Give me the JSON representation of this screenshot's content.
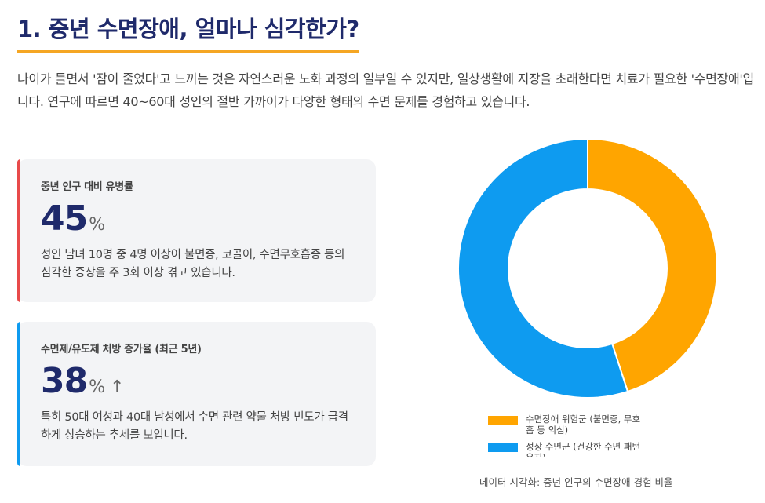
{
  "header": {
    "title": "1. 중년 수면장애, 얼마나 심각한가?",
    "intro": "나이가 들면서 '잠이 줄었다'고 느끼는 것은 자연스러운 노화 과정의 일부일 수 있지만, 일상생활에 지장을 초래한다면 치료가 필요한 '수면장애'입니다. 연구에 따르면 40~60대 성인의 절반 가까이가 다양한 형태의 수면 문제를 경험하고 있습니다."
  },
  "cards": [
    {
      "label": "중년 인구 대비 유병률",
      "value": "45",
      "unit": "%",
      "arrow": "",
      "desc": "성인 남녀 10명 중 4명 이상이 불면증, 코골이, 수면무호흡증 등의 심각한 증상을 주 3회 이상 겪고 있습니다.",
      "accent": "#e84a4a"
    },
    {
      "label": "수면제/유도제 처방 증가율 (최근 5년)",
      "value": "38",
      "unit": "%",
      "arrow": "↑",
      "desc": "특히 50대 여성과 40대 남성에서 수면 관련 약물 처방 빈도가 급격하게 상승하는 추세를 보입니다.",
      "accent": "#0e9bf0"
    }
  ],
  "chart_data": {
    "type": "pie",
    "donut": true,
    "categories": [
      "수면장애 위험군 (불면증, 무호흡 등 의심)",
      "정상 수면군 (건강한 수면 패턴 유지)"
    ],
    "values": [
      45,
      55
    ],
    "colors": [
      "#ffa500",
      "#0e9bf0"
    ],
    "legend_position": "bottom",
    "caption": "데이터 시각화: 중년 인구의 수면장애 경험 비율"
  }
}
